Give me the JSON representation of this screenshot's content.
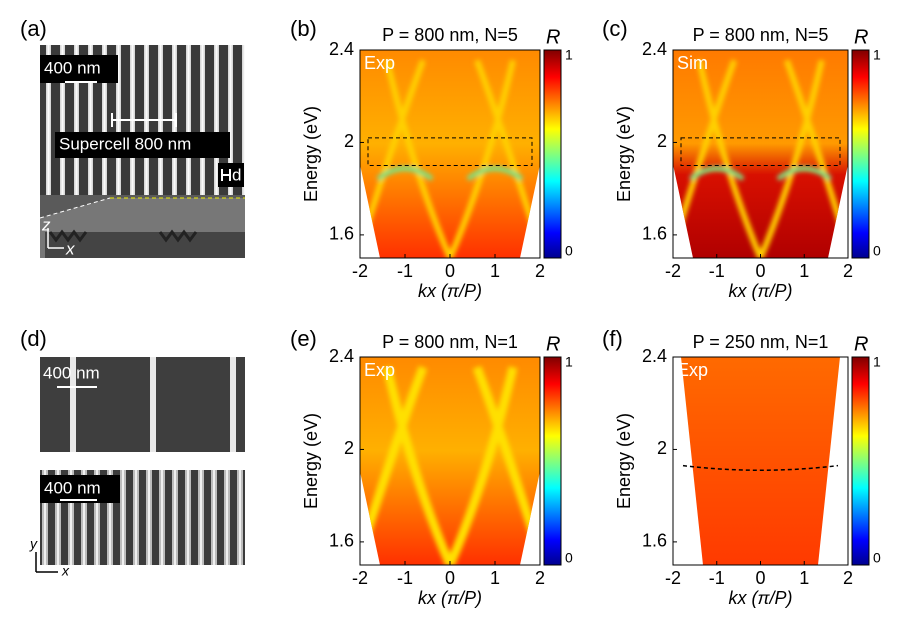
{
  "figure": {
    "a": {
      "label": "(a)",
      "scale": "400 nm",
      "supercell": "Supercell 800 nm",
      "d": "d",
      "z": "z",
      "x": "x"
    },
    "d": {
      "label": "(d)",
      "scale_top": "400 nm",
      "scale_bottom": "400 nm",
      "y": "y",
      "x": "x"
    }
  },
  "chart_data": [
    {
      "type": "heatmap",
      "panel_label": "(b)",
      "title": "P = 800 nm, N=5",
      "annotation": "Exp",
      "xlabel": "kx (π/P)",
      "ylabel": "Energy (eV)",
      "xlim": [
        -2,
        2
      ],
      "xticks": [
        -2,
        -1,
        0,
        1,
        2
      ],
      "ylim": [
        1.5,
        2.4
      ],
      "yticks": [
        1.6,
        2,
        2.4
      ],
      "colorbar": {
        "label": "R",
        "lim": [
          0,
          1
        ],
        "ticks": [
          0,
          1
        ]
      }
    },
    {
      "type": "heatmap",
      "panel_label": "(c)",
      "title": "P = 800 nm, N=5",
      "annotation": "Sim",
      "xlabel": "kx (π/P)",
      "ylabel": "Energy (eV)",
      "xlim": [
        -2,
        2
      ],
      "xticks": [
        -2,
        -1,
        0,
        1,
        2
      ],
      "ylim": [
        1.5,
        2.4
      ],
      "yticks": [
        1.6,
        2,
        2.4
      ],
      "colorbar": {
        "label": "R",
        "lim": [
          0,
          1
        ],
        "ticks": [
          0,
          1
        ]
      }
    },
    {
      "type": "heatmap",
      "panel_label": "(e)",
      "title": "P = 800 nm, N=1",
      "annotation": "Exp",
      "xlabel": "kx (π/P)",
      "ylabel": "Energy (eV)",
      "xlim": [
        -2,
        2
      ],
      "xticks": [
        -2,
        -1,
        0,
        1,
        2
      ],
      "ylim": [
        1.5,
        2.4
      ],
      "yticks": [
        1.6,
        2,
        2.4
      ],
      "colorbar": {
        "label": "R",
        "lim": [
          0,
          1
        ],
        "ticks": [
          0,
          1
        ]
      }
    },
    {
      "type": "heatmap",
      "panel_label": "(f)",
      "title": "P = 250 nm, N=1",
      "annotation": "Exp",
      "xlabel": "kx (π/P)",
      "ylabel": "Energy (eV)",
      "xlim": [
        -2,
        2
      ],
      "xticks": [
        -2,
        -1,
        0,
        1,
        2
      ],
      "ylim": [
        1.5,
        2.4
      ],
      "yticks": [
        1.6,
        2,
        2.4
      ],
      "colorbar": {
        "label": "R",
        "lim": [
          0,
          1
        ],
        "ticks": [
          0,
          1
        ]
      }
    }
  ]
}
